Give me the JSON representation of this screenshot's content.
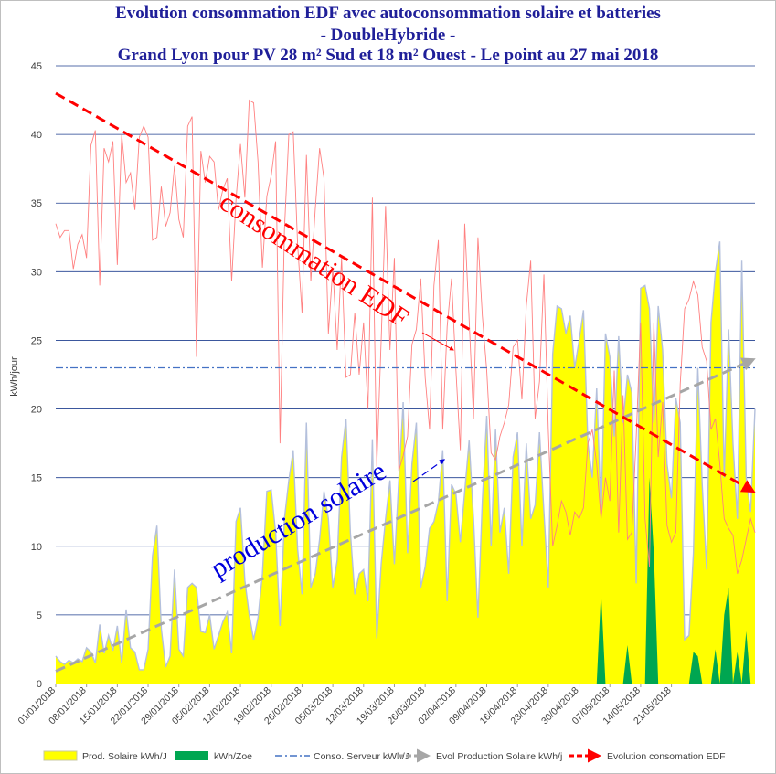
{
  "chart_data": {
    "type": "area",
    "title_lines": [
      "Evolution consommation EDF avec autoconsommation solaire et batteries",
      "- DoubleHybride -",
      "Grand Lyon pour PV 28 m² Sud et 18 m² Ouest - Le point au 27 mai 2018"
    ],
    "ylabel": "kWh/jour",
    "ylim": [
      0,
      45
    ],
    "yticks": [
      0,
      5,
      10,
      15,
      20,
      25,
      30,
      35,
      40,
      45
    ],
    "x_tick_labels": [
      "01/01/2018",
      "08/01/2018",
      "15/01/2018",
      "22/01/2018",
      "29/01/2018",
      "05/02/2018",
      "12/02/2018",
      "19/02/2018",
      "26/02/2018",
      "05/03/2018",
      "12/03/2018",
      "19/03/2018",
      "26/03/2018",
      "02/04/2018",
      "09/04/2018",
      "16/04/2018",
      "23/04/2018",
      "30/04/2018",
      "07/05/2018",
      "14/05/2018",
      "21/05/2018"
    ],
    "x_start": "01/01/2018",
    "x_end": "27/05/2018",
    "grid": "horizontal",
    "legend_position": "bottom",
    "legend": [
      "Prod. Solaire kWh/J",
      "kWh/Zoe",
      "Conso. Serveur kWh/J",
      "Evol Production Solaire kWh/j",
      "Evolution consomation EDF"
    ],
    "series": [
      {
        "name": "Prod. Solaire kWh/J",
        "kind": "area",
        "color": "#ffff00",
        "values": [
          2,
          1.6,
          1.4,
          1.7,
          1.5,
          1.8,
          1.6,
          2.6,
          2.3,
          1.5,
          4.3,
          2.2,
          3.5,
          2.4,
          4.2,
          1.5,
          5.4,
          2.6,
          2.3,
          1,
          1,
          2.5,
          9.3,
          11.5,
          4,
          1.2,
          2,
          8.3,
          2.5,
          2,
          7,
          7.3,
          7,
          3.8,
          3.7,
          5,
          2.5,
          3.5,
          4.5,
          5.2,
          2.2,
          11.8,
          12.8,
          7.5,
          5,
          3.2,
          4.8,
          8,
          14,
          14.1,
          11,
          4.2,
          12,
          14.8,
          17,
          9.8,
          6.5,
          19,
          7,
          8,
          10.5,
          14,
          12,
          7,
          9,
          16.5,
          19.3,
          11,
          6.5,
          8,
          8.3,
          6,
          17.8,
          3.3,
          8.7,
          12,
          14.8,
          8.7,
          14.8,
          20.5,
          9.5,
          16,
          19,
          7,
          8.5,
          11.3,
          11.8,
          13.2,
          17,
          6,
          14.5,
          13.8,
          10.3,
          14,
          17.7,
          12,
          4.8,
          13.3,
          19.5,
          10,
          18.5,
          11,
          12.8,
          8,
          16.5,
          18.3,
          10,
          17.5,
          12,
          13,
          18.3,
          12.5,
          7,
          24,
          27.5,
          27.3,
          25.5,
          26.8,
          23,
          25,
          27.2,
          17.5,
          15,
          21.5,
          12.3,
          25.5,
          23.8,
          18,
          25.3,
          19,
          22.5,
          21.2,
          7.3,
          28.8,
          29,
          27.3,
          19,
          27.5,
          24.3,
          16,
          13.5,
          20.8,
          19,
          3.2,
          3.5,
          9.5,
          23,
          14.5,
          8.3,
          26.3,
          30,
          32.2,
          15,
          25.8,
          17.5,
          12,
          30.8,
          15,
          12.5,
          20
        ]
      },
      {
        "name": "kWh/Zoe",
        "kind": "area",
        "color": "#00a651",
        "values": [
          0,
          0,
          0,
          0,
          0,
          0,
          0,
          0,
          0,
          0,
          0,
          0,
          0,
          0,
          0,
          0,
          0,
          0,
          0,
          0,
          0,
          0,
          0,
          0,
          0,
          0,
          0,
          0,
          0,
          0,
          0,
          0,
          0,
          0,
          0,
          0,
          0,
          0,
          0,
          0,
          0,
          0,
          0,
          0,
          0,
          0,
          0,
          0,
          0,
          0,
          0,
          0,
          0,
          0,
          0,
          0,
          0,
          0,
          0,
          0,
          0,
          0,
          0,
          0,
          0,
          0,
          0,
          0,
          0,
          0,
          0,
          0,
          0,
          0,
          0,
          0,
          0,
          0,
          0,
          0,
          0,
          0,
          0,
          0,
          0,
          0,
          0,
          0,
          0,
          0,
          0,
          0,
          0,
          0,
          0,
          0,
          0,
          0,
          0,
          0,
          0,
          0,
          0,
          0,
          0,
          0,
          0,
          0,
          0,
          0,
          0,
          0,
          0,
          0,
          0,
          0,
          0,
          0,
          0,
          0,
          0,
          0,
          0,
          0,
          6.7,
          0,
          0,
          0,
          0,
          0,
          2.8,
          0,
          0,
          0,
          0,
          15,
          9.5,
          0,
          0,
          0,
          0,
          0,
          0,
          0,
          0,
          2.3,
          2,
          0,
          0,
          0,
          2.5,
          0,
          5,
          7,
          0,
          2.3,
          0,
          3.8,
          0,
          0,
          0
        ]
      },
      {
        "name": "Consommation EDF",
        "kind": "line",
        "color": "#ff8080",
        "values": [
          33.5,
          32.5,
          33,
          33,
          30.2,
          32,
          32.7,
          31,
          39.2,
          40.3,
          29,
          39,
          38,
          39.5,
          30.5,
          40,
          36.5,
          37.2,
          34.5,
          39.8,
          40.6,
          39.8,
          32.3,
          32.5,
          36.2,
          33.3,
          34.3,
          37.7,
          33.8,
          32.5,
          40.6,
          41.3,
          23.8,
          38.8,
          36.5,
          38.4,
          38,
          34.5,
          36,
          36.8,
          29.3,
          35.3,
          39.3,
          35.4,
          42.5,
          42.3,
          38,
          30.3,
          35.5,
          37,
          39.5,
          17.5,
          33,
          40,
          40.2,
          32,
          27,
          38.5,
          29.3,
          34.5,
          39,
          36.8,
          25.5,
          30.3,
          24.3,
          31,
          22.3,
          22.5,
          27,
          22.5,
          26.3,
          20,
          35.4,
          15.8,
          25,
          34.8,
          24.3,
          31,
          15.5,
          16.6,
          18,
          24.7,
          25.8,
          29.5,
          22.3,
          18.5,
          29,
          32.3,
          18.5,
          26,
          29.5,
          22.8,
          17,
          33.5,
          26.5,
          19.3,
          32.5,
          26.8,
          22.8,
          16.8,
          16.3,
          18,
          19,
          20.3,
          24.5,
          25,
          20.7,
          27.5,
          30.8,
          19.3,
          22,
          29.8,
          18.5,
          10,
          11.5,
          13.3,
          12.5,
          10.8,
          12.5,
          12,
          12.8,
          17.5,
          18.5,
          16,
          12,
          15,
          13.3,
          22.8,
          11,
          21,
          10.5,
          11,
          18,
          26.3,
          12,
          8.5,
          26.3,
          16.5,
          20.5,
          11.5,
          10.3,
          11,
          21.8,
          27.3,
          28,
          29.3,
          28.3,
          24.5,
          23.5,
          18.5,
          19.3,
          16,
          12,
          11.3,
          10.8,
          8,
          9,
          10.5,
          12,
          11
        ]
      },
      {
        "name": "Conso. Serveur kWh/J",
        "kind": "constant",
        "color": "#4472c4",
        "value": 23
      },
      {
        "name": "Evol Production Solaire kWh/j",
        "kind": "trend",
        "color": "#a6a6a6",
        "start": 0.9,
        "end": 23.6
      },
      {
        "name": "Evolution consomation EDF",
        "kind": "trend",
        "color": "#ff0000",
        "start": 43,
        "end": 14
      }
    ],
    "annotations": [
      "consommation EDF",
      "production solaire"
    ]
  }
}
